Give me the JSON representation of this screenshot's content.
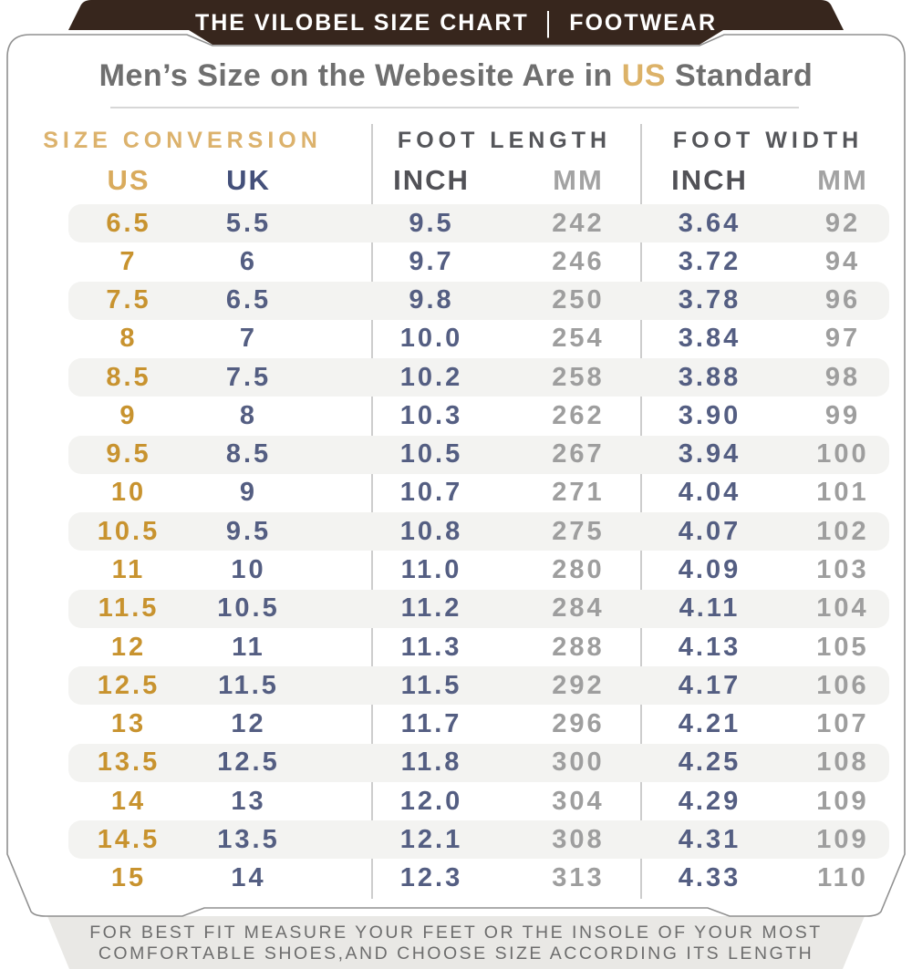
{
  "banner": {
    "title_left": "THE VILOBEL SIZE CHART",
    "separator": "|",
    "title_right": "FOOTWEAR"
  },
  "heading": {
    "prefix": "Men’s Size on the Webesite Are in ",
    "highlight": "US",
    "suffix": " Standard"
  },
  "table": {
    "group_headers": [
      "SIZE CONVERSION",
      "FOOT LENGTH",
      "FOOT WIDTH"
    ],
    "col_headers": [
      "US",
      "UK",
      "INCH",
      "MM",
      "INCH",
      "MM"
    ],
    "rows": [
      [
        "6.5",
        "5.5",
        "9.5",
        "242",
        "3.64",
        "92"
      ],
      [
        "7",
        "6",
        "9.7",
        "246",
        "3.72",
        "94"
      ],
      [
        "7.5",
        "6.5",
        "9.8",
        "250",
        "3.78",
        "96"
      ],
      [
        "8",
        "7",
        "10.0",
        "254",
        "3.84",
        "97"
      ],
      [
        "8.5",
        "7.5",
        "10.2",
        "258",
        "3.88",
        "98"
      ],
      [
        "9",
        "8",
        "10.3",
        "262",
        "3.90",
        "99"
      ],
      [
        "9.5",
        "8.5",
        "10.5",
        "267",
        "3.94",
        "100"
      ],
      [
        "10",
        "9",
        "10.7",
        "271",
        "4.04",
        "101"
      ],
      [
        "10.5",
        "9.5",
        "10.8",
        "275",
        "4.07",
        "102"
      ],
      [
        "11",
        "10",
        "11.0",
        "280",
        "4.09",
        "103"
      ],
      [
        "11.5",
        "10.5",
        "11.2",
        "284",
        "4.11",
        "104"
      ],
      [
        "12",
        "11",
        "11.3",
        "288",
        "4.13",
        "105"
      ],
      [
        "12.5",
        "11.5",
        "11.5",
        "292",
        "4.17",
        "106"
      ],
      [
        "13",
        "12",
        "11.7",
        "296",
        "4.21",
        "107"
      ],
      [
        "13.5",
        "12.5",
        "11.8",
        "300",
        "4.25",
        "108"
      ],
      [
        "14",
        "13",
        "12.0",
        "304",
        "4.29",
        "109"
      ],
      [
        "14.5",
        "13.5",
        "12.1",
        "308",
        "4.31",
        "109"
      ],
      [
        "15",
        "14",
        "12.3",
        "313",
        "4.33",
        "110"
      ]
    ]
  },
  "footer": {
    "line1": "FOR BEST FIT MEASURE YOUR FEET OR THE INSOLE OF YOUR MOST",
    "line2": "COMFORTABLE SHOES,AND CHOOSE SIZE ACCORDING ITS LENGTH"
  },
  "colors": {
    "banner_brown": "#37261d",
    "gold_accent": "#c8932f",
    "gold_header": "#dcb26c",
    "navy_accent": "#545e82",
    "value_gray": "#9e9e9e",
    "header_dark_gray": "#515156",
    "stripe_gray": "#f3f3f1",
    "footer_strip_gray": "#e9e8e5",
    "footer_text_gray": "#6d6d6d"
  }
}
